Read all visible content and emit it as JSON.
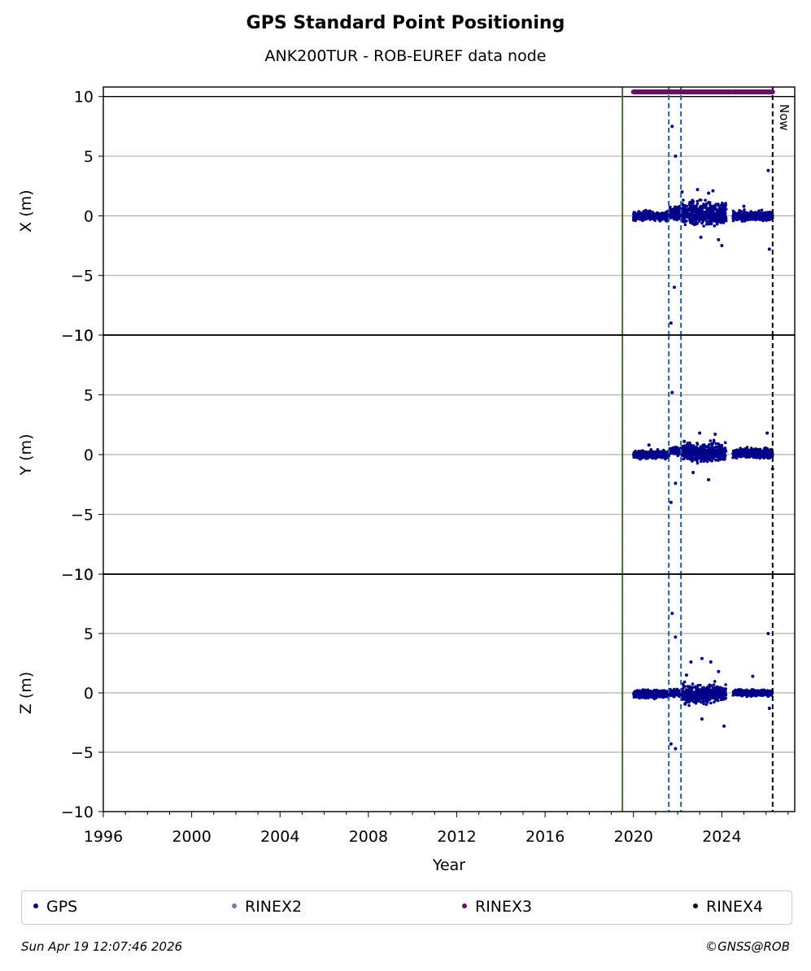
{
  "title": "GPS Standard Point Positioning",
  "subtitle": "ANK200TUR - ROB-EUREF data node",
  "footer": {
    "timestamp": "Sun Apr 19 12:07:46 2026",
    "credit": "©GNSS@ROB"
  },
  "legend": [
    {
      "label": "GPS",
      "color": "#00008b"
    },
    {
      "label": "RINEX2",
      "color": "#8070b8"
    },
    {
      "label": "RINEX3",
      "color": "#6a0d6a"
    },
    {
      "label": "RINEX4",
      "color": "#1a0010"
    }
  ],
  "colors": {
    "gps": "#00008b",
    "rinex3": "#6a0d6a",
    "equipment_change": "#1f5fa8",
    "start_line": "#2e7d32",
    "start_line_dots": "#c62828",
    "now": "#000000",
    "grid": "#b0b0b0"
  },
  "now_label": "Now",
  "chart_data": {
    "type": "scatter",
    "xlabel": "Year",
    "xlim": [
      1996,
      2027.3
    ],
    "xticks": [
      1996,
      2000,
      2004,
      2008,
      2012,
      2016,
      2020,
      2024
    ],
    "yticks": [
      -10,
      -5,
      0,
      5,
      10
    ],
    "grid": true,
    "legend_position": "bottom",
    "vertical_lines": {
      "data_start": 2019.5,
      "equipment_changes": [
        2021.6,
        2022.15
      ],
      "now": 2026.3
    },
    "rinex3_availability": [
      [
        2020.0,
        2024.4
      ],
      [
        2024.5,
        2026.3
      ]
    ],
    "panels": [
      {
        "ylabel": "X (m)",
        "ylim": [
          -10,
          10
        ],
        "outliers": [
          [
            2021.75,
            7.5
          ],
          [
            2021.9,
            5.0
          ],
          [
            2021.85,
            -6.0
          ],
          [
            2021.7,
            -9.0
          ],
          [
            2022.2,
            2.0
          ],
          [
            2022.9,
            2.2
          ],
          [
            2023.6,
            2.1
          ],
          [
            2023.4,
            1.9
          ],
          [
            2023.05,
            -1.8
          ],
          [
            2023.85,
            -2.0
          ],
          [
            2024.0,
            -2.5
          ],
          [
            2026.1,
            3.8
          ],
          [
            2026.15,
            -2.8
          ],
          [
            2025.0,
            0.8
          ]
        ],
        "clusters": [
          {
            "x": [
              2020.0,
              2021.6
            ],
            "center": 0.0,
            "spread": 0.35
          },
          {
            "x": [
              2021.6,
              2022.2
            ],
            "center": 0.2,
            "spread": 0.5
          },
          {
            "x": [
              2022.2,
              2024.2
            ],
            "center": 0.2,
            "spread": 0.9
          },
          {
            "x": [
              2024.5,
              2026.3
            ],
            "center": 0.0,
            "spread": 0.35
          }
        ]
      },
      {
        "ylabel": "Y (m)",
        "ylim": [
          -10,
          10
        ],
        "outliers": [
          [
            2021.75,
            5.2
          ],
          [
            2021.7,
            -4.0
          ],
          [
            2021.9,
            -2.4
          ],
          [
            2022.3,
            1.1
          ],
          [
            2023.0,
            1.8
          ],
          [
            2023.7,
            1.7
          ],
          [
            2022.7,
            -1.5
          ],
          [
            2023.4,
            -2.1
          ],
          [
            2026.05,
            1.8
          ],
          [
            2020.7,
            0.8
          ],
          [
            2026.3,
            -1.2
          ]
        ],
        "clusters": [
          {
            "x": [
              2020.0,
              2021.6
            ],
            "center": 0.0,
            "spread": 0.3
          },
          {
            "x": [
              2021.6,
              2022.2
            ],
            "center": 0.3,
            "spread": 0.3
          },
          {
            "x": [
              2022.2,
              2024.2
            ],
            "center": 0.2,
            "spread": 0.7
          },
          {
            "x": [
              2024.5,
              2026.3
            ],
            "center": 0.1,
            "spread": 0.35
          }
        ]
      },
      {
        "ylabel": "Z (m)",
        "ylim": [
          -10,
          10
        ],
        "outliers": [
          [
            2021.75,
            6.7
          ],
          [
            2021.9,
            4.7
          ],
          [
            2021.7,
            -4.3
          ],
          [
            2021.9,
            -4.7
          ],
          [
            2022.6,
            2.6
          ],
          [
            2023.1,
            2.9
          ],
          [
            2023.5,
            2.6
          ],
          [
            2023.85,
            1.8
          ],
          [
            2024.1,
            -2.8
          ],
          [
            2023.1,
            -2.2
          ],
          [
            2025.4,
            1.4
          ],
          [
            2026.1,
            5.0
          ],
          [
            2026.15,
            -1.3
          ],
          [
            2022.4,
            1.5
          ]
        ],
        "clusters": [
          {
            "x": [
              2020.0,
              2021.6
            ],
            "center": -0.1,
            "spread": 0.3
          },
          {
            "x": [
              2021.6,
              2022.2
            ],
            "center": 0.0,
            "spread": 0.3
          },
          {
            "x": [
              2022.2,
              2024.2
            ],
            "center": -0.1,
            "spread": 0.7
          },
          {
            "x": [
              2024.5,
              2026.3
            ],
            "center": 0.0,
            "spread": 0.25
          }
        ]
      }
    ]
  }
}
